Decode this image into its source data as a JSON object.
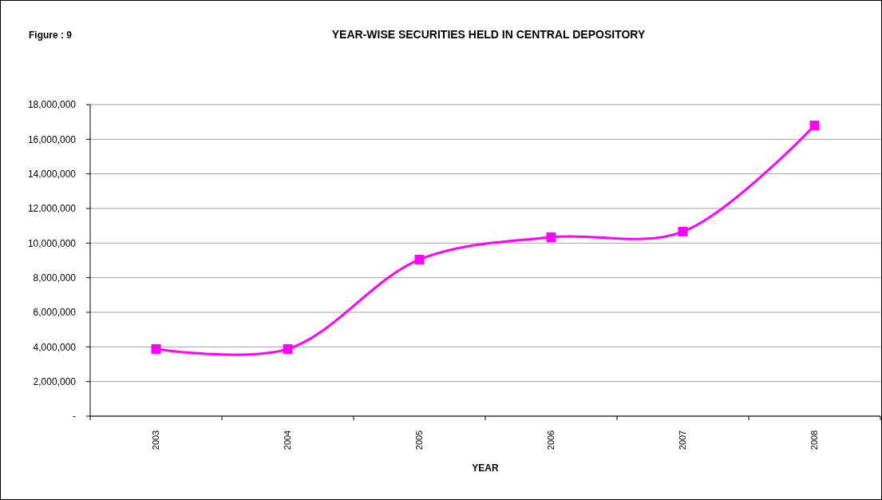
{
  "chart_data": {
    "type": "line",
    "title": "YEAR-WISE SECURITIES HELD  IN CENTRAL DEPOSITORY",
    "xlabel": "YEAR",
    "annotations": [
      "Figure : 9"
    ],
    "categories": [
      "2003",
      "2004",
      "2005",
      "2006",
      "2007",
      "2008"
    ],
    "series": [
      {
        "color": "#ff00ff",
        "values": [
          3880000,
          3880000,
          9050000,
          10340000,
          10660000,
          16800000
        ]
      }
    ],
    "ylim": [
      0,
      18000000
    ],
    "yticks": [
      {
        "value": 0,
        "label": "-"
      },
      {
        "value": 2000000,
        "label": "2,000,000"
      },
      {
        "value": 4000000,
        "label": "4,000,000"
      },
      {
        "value": 6000000,
        "label": "6,000,000"
      },
      {
        "value": 8000000,
        "label": "8,000,000"
      },
      {
        "value": 10000000,
        "label": "10,000,000"
      },
      {
        "value": 12000000,
        "label": "12,000,000"
      },
      {
        "value": 14000000,
        "label": "14,000,000"
      },
      {
        "value": 16000000,
        "label": "16,000,000"
      },
      {
        "value": 18000000,
        "label": "18,000,000"
      }
    ],
    "grid": "y",
    "marker": "square",
    "line_style": "solid"
  }
}
